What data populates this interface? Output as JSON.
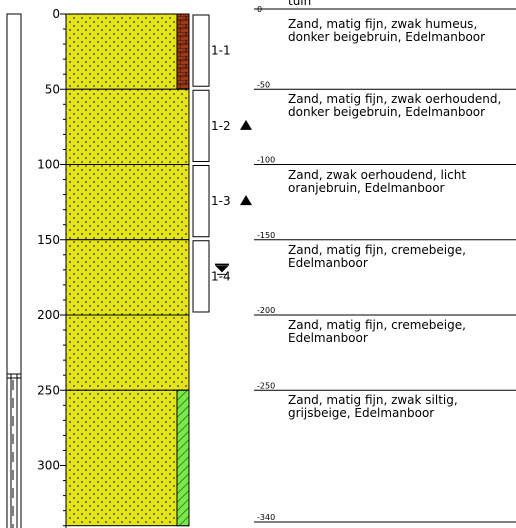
{
  "surface_label": "tuin",
  "depth_axis": {
    "unit": "cm",
    "range": [
      0,
      340
    ],
    "ticks": [
      "0",
      "50",
      "100",
      "150",
      "200",
      "250",
      "300"
    ]
  },
  "layers": [
    {
      "top": 0,
      "bottom": 50,
      "top_label": "0",
      "description": "Zand, matig fijn, zwak humeus,\ndonker beigebruin, Edelmanboor",
      "marker": "humus"
    },
    {
      "top": 50,
      "bottom": 100,
      "top_label": "-50",
      "description": "Zand, matig fijn, zwak oerhoudend,\ndonker beigebruin, Edelmanboor",
      "marker": ""
    },
    {
      "top": 100,
      "bottom": 150,
      "top_label": "-100",
      "description": "Zand, zwak oerhoudend, licht\noranjebruin, Edelmanboor",
      "marker": ""
    },
    {
      "top": 150,
      "bottom": 200,
      "top_label": "-150",
      "description": "Zand, matig fijn, cremebeige,\nEdelmanboor",
      "marker": ""
    },
    {
      "top": 200,
      "bottom": 250,
      "top_label": "-200",
      "description": "Zand, matig fijn, cremebeige,\nEdelmanboor",
      "marker": ""
    },
    {
      "top": 250,
      "bottom": 340,
      "top_label": "-250",
      "description": "Zand, matig fijn, zwak siltig,\ngrijsbeige, Edelmanboor",
      "marker": "silt"
    }
  ],
  "bottom_label": "-340",
  "samples": [
    {
      "label": "1-1",
      "top": 0,
      "bottom": 48,
      "symbol": ""
    },
    {
      "label": "1-2",
      "top": 50,
      "bottom": 98,
      "symbol": "triangle"
    },
    {
      "label": "1-3",
      "top": 100,
      "bottom": 148,
      "symbol": "triangle"
    },
    {
      "label": "1-4",
      "top": 150,
      "bottom": 198,
      "symbol": "groundwater"
    }
  ],
  "colors": {
    "sand": "#e4e419",
    "humus": "#9b3a18",
    "silt": "#7be84a",
    "line": "#000000"
  }
}
